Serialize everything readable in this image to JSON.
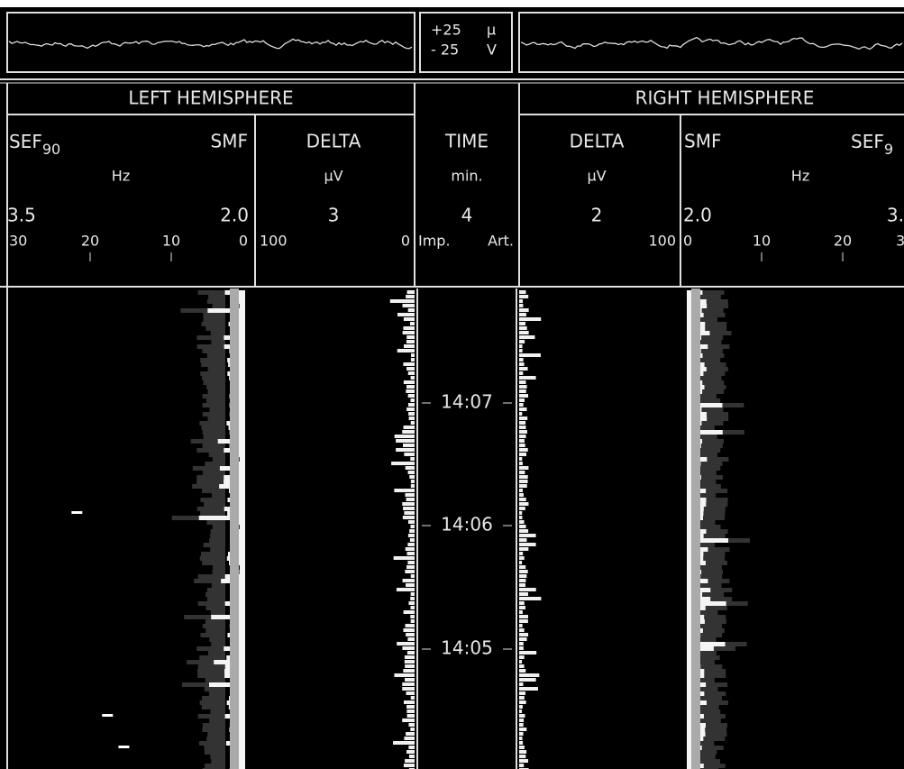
{
  "scale": {
    "upper": "+25",
    "lower": "- 25",
    "unit_top": "µ",
    "unit_bottom": "V"
  },
  "headers": {
    "left": "LEFT HEMISPHERE",
    "right": "RIGHT HEMISPHERE"
  },
  "left_spectral": {
    "label_a": "SEF",
    "label_a_sub": "90",
    "label_b": "SMF",
    "unit": "Hz",
    "value_a": "3.5",
    "value_b": "2.0",
    "scale": [
      "30",
      "20",
      "10",
      "0"
    ]
  },
  "left_delta": {
    "label": "DELTA",
    "unit": "µV",
    "value": "3",
    "scale": [
      "100",
      "0"
    ]
  },
  "time": {
    "label": "TIME",
    "unit": "min.",
    "value": "4",
    "scale": [
      "Imp.",
      "Art."
    ],
    "marks": [
      "14:07",
      "14:06",
      "14:05"
    ]
  },
  "right_delta": {
    "label": "DELTA",
    "unit": "µV",
    "value": "2",
    "scale": [
      "100"
    ]
  },
  "right_spectral": {
    "label_a": "SMF",
    "label_b": "SEF",
    "label_b_sub": "9",
    "unit": "Hz",
    "value_a": "2.0",
    "value_b": "3.",
    "scale": [
      "0",
      "10",
      "20",
      "3"
    ]
  }
}
